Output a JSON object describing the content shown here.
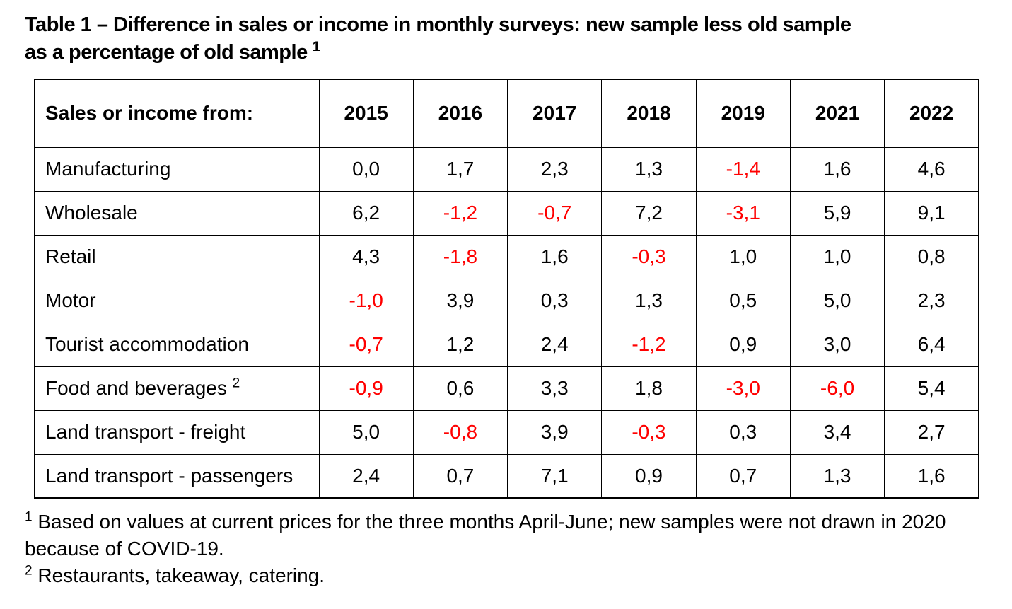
{
  "title": {
    "line1": "Table 1 – Difference in sales or income in monthly surveys: new sample less old sample",
    "line2": "as a percentage of old sample",
    "superscript": "1"
  },
  "table": {
    "header": {
      "label": "Sales or income from:",
      "years": [
        "2015",
        "2016",
        "2017",
        "2018",
        "2019",
        "2021",
        "2022"
      ]
    },
    "rows": [
      {
        "label": "Manufacturing",
        "sup": "",
        "values": [
          "0,0",
          "1,7",
          "2,3",
          "1,3",
          "-1,4",
          "1,6",
          "4,6"
        ]
      },
      {
        "label": "Wholesale",
        "sup": "",
        "values": [
          "6,2",
          "-1,2",
          "-0,7",
          "7,2",
          "-3,1",
          "5,9",
          "9,1"
        ]
      },
      {
        "label": "Retail",
        "sup": "",
        "values": [
          "4,3",
          "-1,8",
          "1,6",
          "-0,3",
          "1,0",
          "1,0",
          "0,8"
        ]
      },
      {
        "label": "Motor",
        "sup": "",
        "values": [
          "-1,0",
          "3,9",
          "0,3",
          "1,3",
          "0,5",
          "5,0",
          "2,3"
        ]
      },
      {
        "label": "Tourist accommodation",
        "sup": "",
        "values": [
          "-0,7",
          "1,2",
          "2,4",
          "-1,2",
          "0,9",
          "3,0",
          "6,4"
        ]
      },
      {
        "label": "Food and beverages",
        "sup": "2",
        "values": [
          "-0,9",
          "0,6",
          "3,3",
          "1,8",
          "-3,0",
          "-6,0",
          "5,4"
        ]
      },
      {
        "label": "Land transport - freight",
        "sup": "",
        "values": [
          "5,0",
          "-0,8",
          "3,9",
          "-0,3",
          "0,3",
          "3,4",
          "2,7"
        ]
      },
      {
        "label": "Land transport - passengers",
        "sup": "",
        "values": [
          "2,4",
          "0,7",
          "7,1",
          "0,9",
          "0,7",
          "1,3",
          "1,6"
        ]
      }
    ]
  },
  "footnotes": [
    {
      "sup": "1",
      "text": "Based on values at current prices for the three months April-June; new samples were not drawn in 2020 because of COVID-19."
    },
    {
      "sup": "2",
      "text": "Restaurants, takeaway, catering."
    }
  ],
  "colors": {
    "negative_value": "#ff0000",
    "text": "#000000",
    "border": "#000000",
    "background": "#ffffff"
  }
}
